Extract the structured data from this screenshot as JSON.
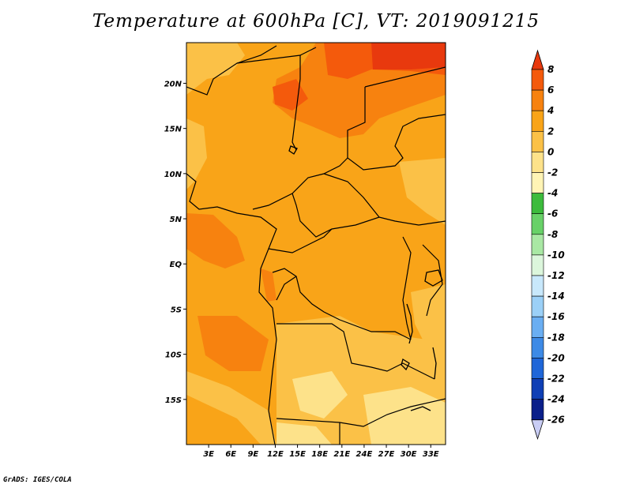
{
  "title": "Temperature at 600hPa [C], VT: 2019091215",
  "credit": "GrADS: IGES/COLA",
  "map": {
    "lon_range": [
      0,
      35
    ],
    "lat_range": [
      -20,
      24.5
    ],
    "lon_ticks": [
      {
        "value": 3,
        "label": "3E"
      },
      {
        "value": 6,
        "label": "6E"
      },
      {
        "value": 9,
        "label": "9E"
      },
      {
        "value": 12,
        "label": "12E"
      },
      {
        "value": 15,
        "label": "15E"
      },
      {
        "value": 18,
        "label": "18E"
      },
      {
        "value": 21,
        "label": "21E"
      },
      {
        "value": 24,
        "label": "24E"
      },
      {
        "value": 27,
        "label": "27E"
      },
      {
        "value": 30,
        "label": "30E"
      },
      {
        "value": 33,
        "label": "33E"
      }
    ],
    "lat_ticks": [
      {
        "value": 20,
        "label": "20N"
      },
      {
        "value": 15,
        "label": "15N"
      },
      {
        "value": 10,
        "label": "10N"
      },
      {
        "value": 5,
        "label": "5N"
      },
      {
        "value": 0,
        "label": "EQ"
      },
      {
        "value": -5,
        "label": "5S"
      },
      {
        "value": -10,
        "label": "10S"
      },
      {
        "value": -15,
        "label": "15S"
      }
    ]
  },
  "colorbar": {
    "levels": [
      "8",
      "6",
      "4",
      "2",
      "0",
      "-2",
      "-4",
      "-6",
      "-8",
      "-10",
      "-12",
      "-14",
      "-16",
      "-18",
      "-20",
      "-22",
      "-24",
      "-26"
    ],
    "colors": [
      "#e8390e",
      "#f45a0c",
      "#f7820f",
      "#f9a418",
      "#fbc147",
      "#fde28a",
      "#fff4b5",
      "#3cbb3c",
      "#68d168",
      "#a9e8a4",
      "#dcf6dc",
      "#c8e8fb",
      "#9bd0f7",
      "#6aaef2",
      "#3d8ae6",
      "#1f66d8",
      "#0f3fb5",
      "#0a1f8a",
      "#081066"
    ],
    "top_color": "#e8390e",
    "bottom_color": "#c9cdf5"
  },
  "field_colors": {
    "warmest": "#e8390e",
    "very_warm": "#f45a0c",
    "warm": "#f7820f",
    "mild": "#f9a418",
    "cool": "#fbc147",
    "coolest": "#fde28a"
  }
}
